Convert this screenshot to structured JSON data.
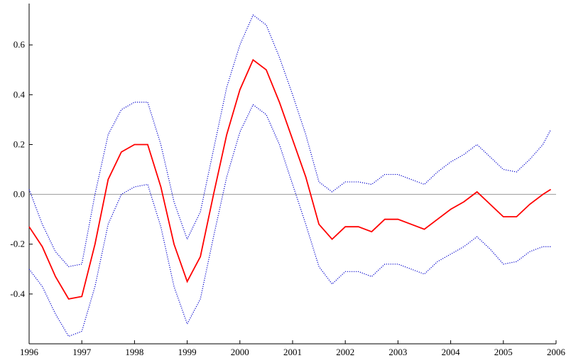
{
  "chart_data": {
    "type": "line",
    "x": [
      1996,
      1996.25,
      1996.5,
      1996.75,
      1997,
      1997.25,
      1997.5,
      1997.75,
      1998,
      1998.25,
      1998.5,
      1998.75,
      1999,
      1999.25,
      1999.5,
      1999.75,
      2000,
      2000.25,
      2000.5,
      2000.75,
      2001,
      2001.25,
      2001.5,
      2001.75,
      2002,
      2002.25,
      2002.5,
      2002.75,
      2003,
      2003.25,
      2003.5,
      2003.75,
      2004,
      2004.25,
      2004.5,
      2004.75,
      2005,
      2005.25,
      2005.5,
      2005.75,
      2005.9
    ],
    "series": [
      {
        "color": "#0000cc",
        "line_style": "dotted",
        "values": [
          0.02,
          -0.12,
          -0.23,
          -0.29,
          -0.28,
          0.0,
          0.24,
          0.34,
          0.37,
          0.37,
          0.2,
          -0.03,
          -0.18,
          -0.07,
          0.18,
          0.43,
          0.6,
          0.72,
          0.68,
          0.55,
          0.4,
          0.24,
          0.05,
          0.01,
          0.05,
          0.05,
          0.04,
          0.08,
          0.08,
          0.06,
          0.04,
          0.09,
          0.13,
          0.16,
          0.2,
          0.15,
          0.1,
          0.09,
          0.14,
          0.2,
          0.26
        ]
      },
      {
        "color": "#0000cc",
        "line_style": "dotted",
        "values": [
          -0.3,
          -0.37,
          -0.48,
          -0.57,
          -0.55,
          -0.37,
          -0.12,
          0.0,
          0.03,
          0.04,
          -0.13,
          -0.37,
          -0.52,
          -0.42,
          -0.17,
          0.07,
          0.25,
          0.36,
          0.32,
          0.2,
          0.04,
          -0.12,
          -0.29,
          -0.36,
          -0.31,
          -0.31,
          -0.33,
          -0.28,
          -0.28,
          -0.3,
          -0.32,
          -0.27,
          -0.24,
          -0.21,
          -0.17,
          -0.22,
          -0.28,
          -0.27,
          -0.23,
          -0.21,
          -0.21
        ]
      },
      {
        "color": "#ff0000",
        "line_style": "solid",
        "values": [
          -0.13,
          -0.21,
          -0.33,
          -0.42,
          -0.41,
          -0.2,
          0.06,
          0.17,
          0.2,
          0.2,
          0.03,
          -0.2,
          -0.35,
          -0.25,
          0.0,
          0.24,
          0.42,
          0.54,
          0.5,
          0.37,
          0.22,
          0.07,
          -0.12,
          -0.18,
          -0.13,
          -0.13,
          -0.15,
          -0.1,
          -0.1,
          -0.12,
          -0.14,
          -0.1,
          -0.06,
          -0.03,
          0.01,
          -0.04,
          -0.09,
          -0.09,
          -0.04,
          0.0,
          0.02
        ]
      }
    ],
    "xlim": [
      1996,
      2006
    ],
    "xticks": [
      1996,
      1997,
      1998,
      1999,
      2000,
      2001,
      2002,
      2003,
      2004,
      2005,
      2006
    ],
    "ylim": [
      -0.6,
      0.766
    ],
    "yticks": [
      -0.4,
      -0.2,
      {
        "value": 0,
        "label": "0.0"
      },
      0.2,
      0.4,
      0.6
    ],
    "zero_line": true
  }
}
